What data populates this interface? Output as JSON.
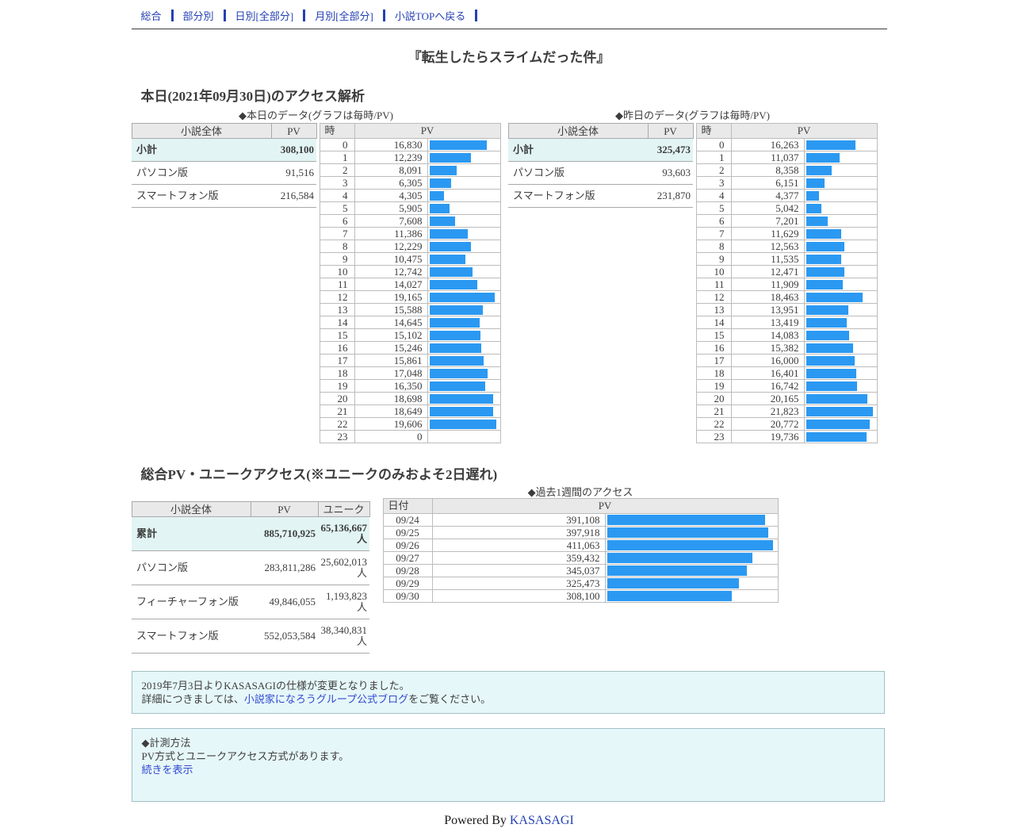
{
  "nav": {
    "items": [
      {
        "label": "総合"
      },
      {
        "label": "部分別"
      },
      {
        "label": "日別[全部分]"
      },
      {
        "label": "月別[全部分]"
      },
      {
        "label": "小説TOPへ戻る"
      }
    ]
  },
  "page_title": "『転生したらスライムだった件』",
  "today_section": {
    "heading": "本日(2021年09月30日)のアクセス解析",
    "panels": [
      {
        "caption": "◆本日のデータ(グラフは毎時/PV)",
        "summary": {
          "headers": [
            "小説全体",
            "PV"
          ],
          "rows": [
            {
              "label": "小計",
              "pv": "308,100",
              "highlight": true
            },
            {
              "label": "パソコン版",
              "pv": "91,516",
              "highlight": false
            },
            {
              "label": "スマートフォン版",
              "pv": "216,584",
              "highlight": false
            }
          ]
        },
        "hourly": {
          "headers": [
            "時",
            "PV"
          ],
          "rows": [
            {
              "hour": "0",
              "pv": "16,830"
            },
            {
              "hour": "1",
              "pv": "12,239"
            },
            {
              "hour": "2",
              "pv": "8,091"
            },
            {
              "hour": "3",
              "pv": "6,305"
            },
            {
              "hour": "4",
              "pv": "4,305"
            },
            {
              "hour": "5",
              "pv": "5,905"
            },
            {
              "hour": "6",
              "pv": "7,608"
            },
            {
              "hour": "7",
              "pv": "11,386"
            },
            {
              "hour": "8",
              "pv": "12,229"
            },
            {
              "hour": "9",
              "pv": "10,475"
            },
            {
              "hour": "10",
              "pv": "12,742"
            },
            {
              "hour": "11",
              "pv": "14,027"
            },
            {
              "hour": "12",
              "pv": "19,165"
            },
            {
              "hour": "13",
              "pv": "15,588"
            },
            {
              "hour": "14",
              "pv": "14,645"
            },
            {
              "hour": "15",
              "pv": "15,102"
            },
            {
              "hour": "16",
              "pv": "15,246"
            },
            {
              "hour": "17",
              "pv": "15,861"
            },
            {
              "hour": "18",
              "pv": "17,048"
            },
            {
              "hour": "19",
              "pv": "16,350"
            },
            {
              "hour": "20",
              "pv": "18,698"
            },
            {
              "hour": "21",
              "pv": "18,649"
            },
            {
              "hour": "22",
              "pv": "19,606"
            },
            {
              "hour": "23",
              "pv": "0"
            }
          ]
        }
      },
      {
        "caption": "◆昨日のデータ(グラフは毎時/PV)",
        "summary": {
          "headers": [
            "小説全体",
            "PV"
          ],
          "rows": [
            {
              "label": "小計",
              "pv": "325,473",
              "highlight": true
            },
            {
              "label": "パソコン版",
              "pv": "93,603",
              "highlight": false
            },
            {
              "label": "スマートフォン版",
              "pv": "231,870",
              "highlight": false
            }
          ]
        },
        "hourly": {
          "headers": [
            "時",
            "PV"
          ],
          "rows": [
            {
              "hour": "0",
              "pv": "16,263"
            },
            {
              "hour": "1",
              "pv": "11,037"
            },
            {
              "hour": "2",
              "pv": "8,358"
            },
            {
              "hour": "3",
              "pv": "6,151"
            },
            {
              "hour": "4",
              "pv": "4,377"
            },
            {
              "hour": "5",
              "pv": "5,042"
            },
            {
              "hour": "6",
              "pv": "7,201"
            },
            {
              "hour": "7",
              "pv": "11,629"
            },
            {
              "hour": "8",
              "pv": "12,563"
            },
            {
              "hour": "9",
              "pv": "11,535"
            },
            {
              "hour": "10",
              "pv": "12,471"
            },
            {
              "hour": "11",
              "pv": "11,909"
            },
            {
              "hour": "12",
              "pv": "18,463"
            },
            {
              "hour": "13",
              "pv": "13,951"
            },
            {
              "hour": "14",
              "pv": "13,419"
            },
            {
              "hour": "15",
              "pv": "14,083"
            },
            {
              "hour": "16",
              "pv": "15,382"
            },
            {
              "hour": "17",
              "pv": "16,000"
            },
            {
              "hour": "18",
              "pv": "16,401"
            },
            {
              "hour": "19",
              "pv": "16,742"
            },
            {
              "hour": "20",
              "pv": "20,165"
            },
            {
              "hour": "21",
              "pv": "21,823"
            },
            {
              "hour": "22",
              "pv": "20,772"
            },
            {
              "hour": "23",
              "pv": "19,736"
            }
          ]
        }
      }
    ]
  },
  "totals_section": {
    "heading": "総合PV・ユニークアクセス(※ユニークのみおよそ2日遅れ)",
    "totals": {
      "headers": [
        "小説全体",
        "PV",
        "ユニーク"
      ],
      "rows": [
        {
          "label": "累計",
          "pv": "885,710,925",
          "unique": "65,136,667人",
          "highlight": true
        },
        {
          "label": "パソコン版",
          "pv": "283,811,286",
          "unique": "25,602,013人",
          "highlight": false
        },
        {
          "label": "フィーチャーフォン版",
          "pv": "49,846,055",
          "unique": "1,193,823人",
          "highlight": false
        },
        {
          "label": "スマートフォン版",
          "pv": "552,053,584",
          "unique": "38,340,831人",
          "highlight": false
        }
      ]
    },
    "weekly": {
      "caption": "◆過去1週間のアクセス",
      "headers": [
        "日付",
        "PV"
      ],
      "rows": [
        {
          "date": "09/24",
          "pv": "391,108"
        },
        {
          "date": "09/25",
          "pv": "397,918"
        },
        {
          "date": "09/26",
          "pv": "411,063"
        },
        {
          "date": "09/27",
          "pv": "359,432"
        },
        {
          "date": "09/28",
          "pv": "345,037"
        },
        {
          "date": "09/29",
          "pv": "325,473"
        },
        {
          "date": "09/30",
          "pv": "308,100"
        }
      ]
    }
  },
  "notices": {
    "spec_change": {
      "line1": "2019年7月3日よりKASASAGIの仕様が変更となりました。",
      "line2_prefix": "詳細につきましては、",
      "line2_link": "小説家になろうグループ公式ブログ",
      "line2_suffix": "をご覧ください。"
    },
    "method": {
      "title": "◆計測方法",
      "body": "PV方式とユニークアクセス方式があります。",
      "link": "続きを表示"
    }
  },
  "footer": {
    "powered_by": "Powered By ",
    "link": "KASASAGI"
  },
  "colors": {
    "bar": "#2b99f2",
    "link": "#2440b3",
    "highlight_row": "#e2f4f4"
  },
  "chart_data": [
    {
      "type": "bar",
      "title": "◆本日のデータ(グラフは毎時/PV)",
      "categories": [
        0,
        1,
        2,
        3,
        4,
        5,
        6,
        7,
        8,
        9,
        10,
        11,
        12,
        13,
        14,
        15,
        16,
        17,
        18,
        19,
        20,
        21,
        22,
        23
      ],
      "values": [
        16830,
        12239,
        8091,
        6305,
        4305,
        5905,
        7608,
        11386,
        12229,
        10475,
        12742,
        14027,
        19165,
        15588,
        14645,
        15102,
        15246,
        15861,
        17048,
        16350,
        18698,
        18649,
        19606,
        0
      ],
      "xlabel": "時",
      "ylabel": "PV",
      "orientation": "horizontal"
    },
    {
      "type": "bar",
      "title": "◆昨日のデータ(グラフは毎時/PV)",
      "categories": [
        0,
        1,
        2,
        3,
        4,
        5,
        6,
        7,
        8,
        9,
        10,
        11,
        12,
        13,
        14,
        15,
        16,
        17,
        18,
        19,
        20,
        21,
        22,
        23
      ],
      "values": [
        16263,
        11037,
        8358,
        6151,
        4377,
        5042,
        7201,
        11629,
        12563,
        11535,
        12471,
        11909,
        18463,
        13951,
        13419,
        14083,
        15382,
        16000,
        16401,
        16742,
        20165,
        21823,
        20772,
        19736
      ],
      "xlabel": "時",
      "ylabel": "PV",
      "orientation": "horizontal"
    },
    {
      "type": "bar",
      "title": "◆過去1週間のアクセス",
      "categories": [
        "09/24",
        "09/25",
        "09/26",
        "09/27",
        "09/28",
        "09/29",
        "09/30"
      ],
      "values": [
        391108,
        397918,
        411063,
        359432,
        345037,
        325473,
        308100
      ],
      "xlabel": "日付",
      "ylabel": "PV",
      "orientation": "horizontal"
    }
  ]
}
